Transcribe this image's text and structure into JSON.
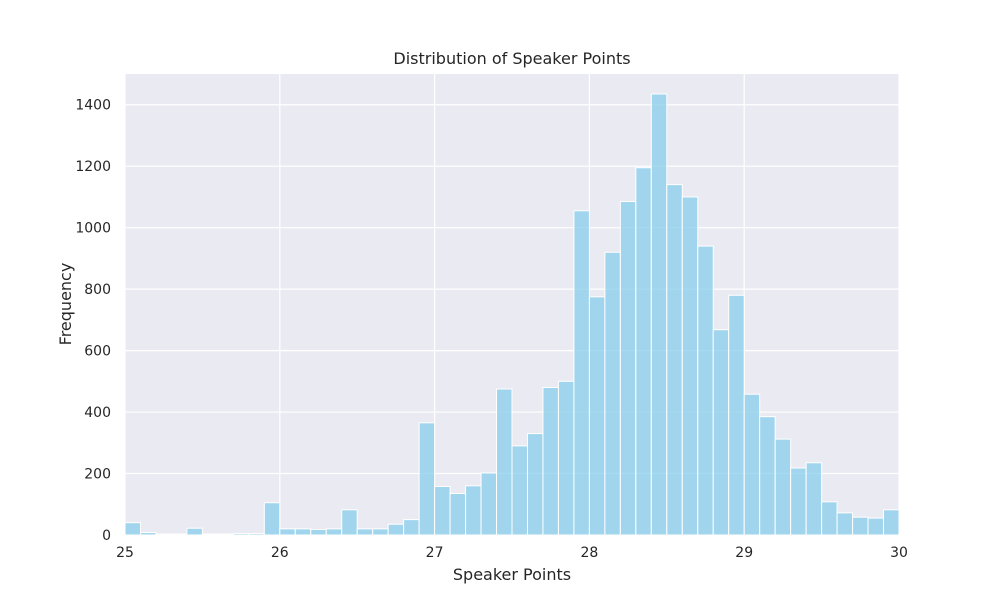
{
  "chart_data": {
    "type": "bar",
    "title": "Distribution of Speaker Points",
    "xlabel": "Speaker Points",
    "ylabel": "Frequency",
    "xlim": [
      25,
      30
    ],
    "ylim": [
      0,
      1500
    ],
    "x_ticks": [
      "25",
      "26",
      "27",
      "28",
      "29",
      "30"
    ],
    "y_ticks": [
      "0",
      "200",
      "400",
      "600",
      "800",
      "1000",
      "1200",
      "1400"
    ],
    "bin_width": 0.1,
    "bins_start": [
      25.0,
      25.1,
      25.2,
      25.3,
      25.4,
      25.5,
      25.6,
      25.7,
      25.8,
      25.9,
      26.0,
      26.1,
      26.2,
      26.3,
      26.4,
      26.5,
      26.6,
      26.7,
      26.8,
      26.9,
      27.0,
      27.1,
      27.2,
      27.3,
      27.4,
      27.5,
      27.6,
      27.7,
      27.8,
      27.9,
      28.0,
      28.1,
      28.2,
      28.3,
      28.4,
      28.5,
      28.6,
      28.7,
      28.8,
      28.9,
      29.0,
      29.1,
      29.2,
      29.3,
      29.4,
      29.5,
      29.6,
      29.7,
      29.8,
      29.9
    ],
    "values": [
      40,
      8,
      3,
      3,
      22,
      3,
      3,
      5,
      5,
      105,
      20,
      20,
      18,
      20,
      82,
      20,
      20,
      35,
      50,
      365,
      158,
      135,
      160,
      202,
      475,
      290,
      330,
      480,
      500,
      1055,
      775,
      920,
      1085,
      1195,
      1435,
      1140,
      1100,
      940,
      668,
      780,
      458,
      385,
      312,
      218,
      235,
      108,
      72,
      58,
      55,
      82
    ],
    "grid": true,
    "colors": {
      "bar_fill": "#87ceeb",
      "bar_edge": "#ffffff",
      "plot_bg": "#eaeaf2",
      "grid": "#ffffff",
      "text": "#262626"
    }
  }
}
